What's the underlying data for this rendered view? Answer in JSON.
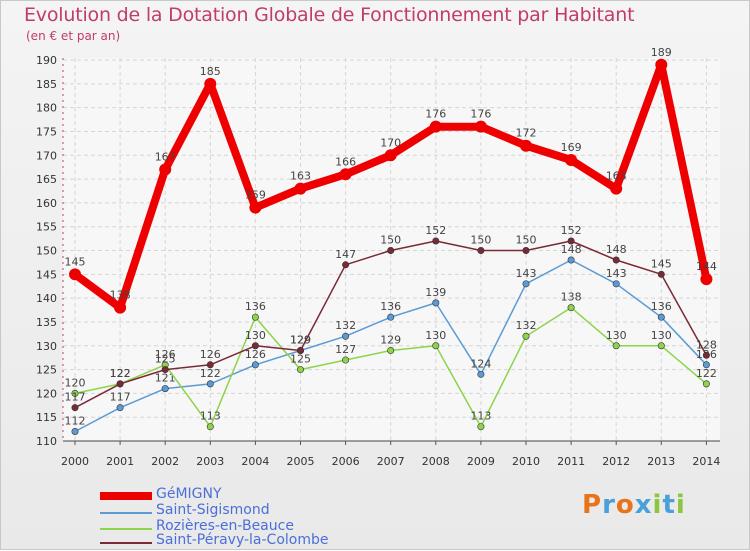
{
  "title": "Evolution de la Dotation Globale de Fonctionnement par Habitant",
  "subtitle": "(en € et par an)",
  "logo": "Proxiti",
  "chart_data": {
    "type": "line",
    "title": "Evolution de la Dotation Globale de Fonctionnement par Habitant",
    "ylabel": "(en € et par an)",
    "xlabel": "",
    "ylim": [
      110,
      190
    ],
    "yticks": [
      110,
      115,
      120,
      125,
      130,
      135,
      140,
      145,
      150,
      155,
      160,
      165,
      170,
      175,
      180,
      185,
      190
    ],
    "categories": [
      "2000",
      "2001",
      "2002",
      "2003",
      "2004",
      "2005",
      "2006",
      "2007",
      "2008",
      "2009",
      "2010",
      "2011",
      "2012",
      "2013",
      "2014"
    ],
    "series": [
      {
        "name": "GéMIGNY",
        "color": "#ee0000",
        "values": [
          145,
          138,
          167,
          185,
          159,
          163,
          166,
          170,
          176,
          176,
          172,
          169,
          163,
          189,
          144
        ]
      },
      {
        "name": "Saint-Sigismond",
        "color": "#5b9bd5",
        "values": [
          112,
          117,
          121,
          122,
          126,
          129,
          132,
          136,
          139,
          124,
          143,
          148,
          143,
          136,
          126
        ]
      },
      {
        "name": "Rozières-en-Beauce",
        "color": "#8cd44a",
        "values": [
          120,
          122,
          126,
          113,
          136,
          125,
          127,
          129,
          130,
          113,
          132,
          138,
          130,
          130,
          122
        ]
      },
      {
        "name": "Saint-Péravy-la-Colombe",
        "color": "#7a2a36",
        "values": [
          117,
          122,
          125,
          126,
          130,
          129,
          147,
          150,
          152,
          150,
          150,
          152,
          148,
          145,
          128
        ]
      }
    ],
    "legend_position": "bottom-left",
    "grid": true
  }
}
